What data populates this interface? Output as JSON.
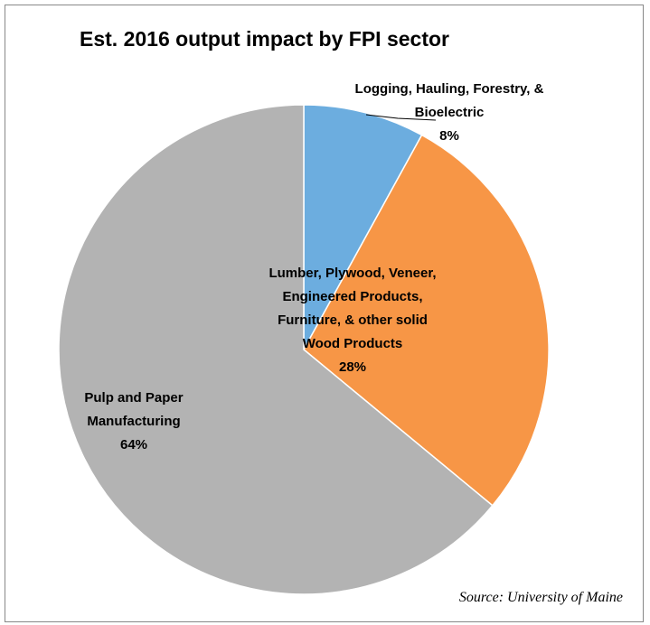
{
  "chart_data": {
    "type": "pie",
    "title": "Est. 2016 output impact by FPI sector",
    "categories": [
      "Logging, Hauling, Forestry, & Bioelectric",
      "Lumber, Plywood, Veneer, Engineered Products, Furniture, & other solid Wood Products",
      "Pulp and Paper Manufacturing"
    ],
    "values": [
      8,
      28,
      64
    ],
    "value_labels": [
      "8%",
      "28%",
      "64%"
    ],
    "colors": [
      "#6caddf",
      "#f79646",
      "#b3b3b3"
    ],
    "source": "Source: University of Maine"
  }
}
